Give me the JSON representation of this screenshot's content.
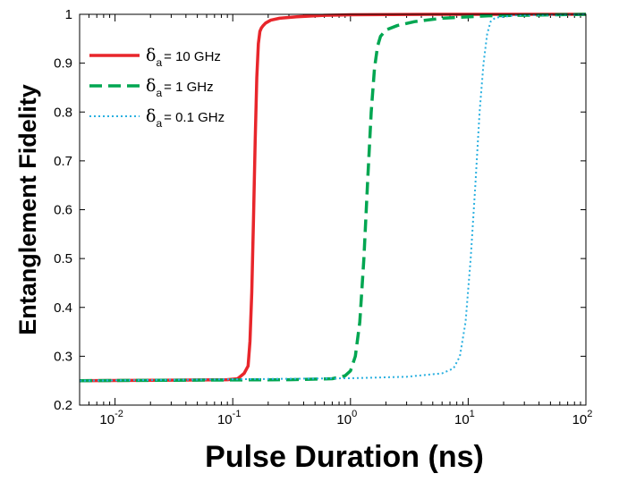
{
  "chart_data": {
    "type": "line",
    "xlabel": "Pulse Duration (ns)",
    "ylabel": "Entanglement Fidelity",
    "xscale": "log",
    "xlim": [
      0.005,
      100
    ],
    "ylim": [
      0.2,
      1.0
    ],
    "grid": false,
    "legend_position": "top-left",
    "y_ticks": [
      "0.2",
      "0.3",
      "0.4",
      "0.5",
      "0.6",
      "0.7",
      "0.8",
      "0.9",
      "1"
    ],
    "x_ticks": [
      {
        "value": 0.01,
        "base": "10",
        "exp": "-2"
      },
      {
        "value": 0.1,
        "base": "10",
        "exp": "-1"
      },
      {
        "value": 1,
        "base": "10",
        "exp": "0"
      },
      {
        "value": 10,
        "base": "10",
        "exp": "1"
      },
      {
        "value": 100,
        "base": "10",
        "exp": "2"
      }
    ],
    "series": [
      {
        "name_symbol": "δ",
        "name_sub": "a",
        "name_rest": "= 10 GHz",
        "color": "#e8262b",
        "style": "solid",
        "x": [
          0.005,
          0.03,
          0.09,
          0.11,
          0.125,
          0.135,
          0.14,
          0.145,
          0.15,
          0.155,
          0.16,
          0.165,
          0.17,
          0.175,
          0.18,
          0.19,
          0.21,
          0.25,
          0.35,
          0.6,
          1.0,
          5,
          100
        ],
        "y": [
          0.25,
          0.251,
          0.252,
          0.254,
          0.265,
          0.28,
          0.33,
          0.43,
          0.58,
          0.74,
          0.87,
          0.94,
          0.965,
          0.972,
          0.976,
          0.982,
          0.988,
          0.992,
          0.995,
          0.998,
          0.999,
          1.0,
          1.0
        ]
      },
      {
        "name_symbol": "δ",
        "name_sub": "a",
        "name_rest": "= 1 GHz",
        "color": "#00a651",
        "style": "dashed",
        "x": [
          0.005,
          0.3,
          0.7,
          0.9,
          1.0,
          1.1,
          1.2,
          1.3,
          1.4,
          1.5,
          1.6,
          1.7,
          1.8,
          2.0,
          2.5,
          3.5,
          6,
          15,
          100
        ],
        "y": [
          0.25,
          0.252,
          0.254,
          0.26,
          0.27,
          0.3,
          0.37,
          0.5,
          0.66,
          0.8,
          0.89,
          0.935,
          0.955,
          0.968,
          0.977,
          0.985,
          0.992,
          0.997,
          1.0
        ]
      },
      {
        "name_symbol": "δ",
        "name_sub": "a",
        "name_rest": "= 0.1 GHz",
        "color": "#2ab0e0",
        "style": "dotted",
        "x": [
          0.005,
          1.0,
          3.0,
          6.0,
          7.5,
          8.5,
          9.5,
          10.5,
          11.5,
          12.5,
          13.5,
          14.5,
          15.5,
          17,
          25,
          100
        ],
        "y": [
          0.25,
          0.255,
          0.258,
          0.265,
          0.275,
          0.3,
          0.37,
          0.5,
          0.65,
          0.8,
          0.9,
          0.96,
          0.985,
          0.993,
          0.998,
          1.0
        ]
      }
    ]
  }
}
